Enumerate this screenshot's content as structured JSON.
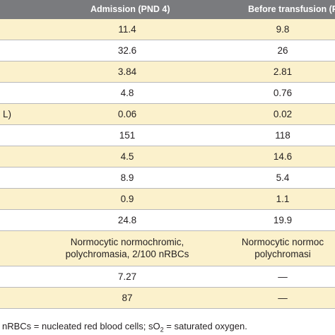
{
  "table": {
    "headers": [
      "Admission (PND 4)",
      "Before transfusion (P"
    ],
    "rows": [
      {
        "label": "",
        "admission": "11.4",
        "before": "9.8"
      },
      {
        "label": "",
        "admission": "32.6",
        "before": "26"
      },
      {
        "label": "",
        "admission": "3.84",
        "before": "2.81"
      },
      {
        "label": "",
        "admission": "4.8",
        "before": "0.76"
      },
      {
        "label": "L)",
        "admission": "0.06",
        "before": "0.02"
      },
      {
        "label": "",
        "admission": "151",
        "before": "118"
      },
      {
        "label": "",
        "admission": "4.5",
        "before": "14.6"
      },
      {
        "label": "",
        "admission": "8.9",
        "before": "5.4"
      },
      {
        "label": "",
        "admission": "0.9",
        "before": "1.1"
      },
      {
        "label": "",
        "admission": "24.8",
        "before": "19.9"
      },
      {
        "label": "",
        "admission": "Normocytic normochromic,\npolychromasia, 2/100 nRBCs",
        "before": "Normocytic normoc\npolychromasi"
      },
      {
        "label": "",
        "admission": "7.27",
        "before": "—"
      },
      {
        "label": "",
        "admission": "87",
        "before": "—"
      }
    ]
  },
  "footer": {
    "part1": "nRBCs = nucleated red blood cells; sO",
    "subscript": "2",
    "part2": " = saturated oxygen."
  }
}
